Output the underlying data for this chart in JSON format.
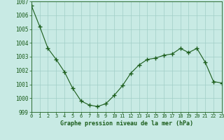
{
  "x": [
    0,
    1,
    2,
    3,
    4,
    5,
    6,
    7,
    8,
    9,
    10,
    11,
    12,
    13,
    14,
    15,
    16,
    17,
    18,
    19,
    20,
    21,
    22,
    23
  ],
  "y": [
    1006.7,
    1005.2,
    1003.6,
    1002.8,
    1001.9,
    1000.7,
    999.8,
    999.5,
    999.4,
    999.6,
    1000.2,
    1000.9,
    1001.8,
    1002.4,
    1002.8,
    1002.9,
    1003.1,
    1003.2,
    1003.6,
    1003.3,
    1003.6,
    1002.6,
    1001.2,
    1001.1
  ],
  "line_color": "#1a5c1a",
  "marker": "+",
  "marker_color": "#1a5c1a",
  "bg_color": "#c8eae4",
  "grid_color": "#a0cec6",
  "xlabel": "Graphe pression niveau de la mer (hPa)",
  "xlabel_color": "#1a5c1a",
  "tick_color": "#1a5c1a",
  "ylim": [
    999,
    1007
  ],
  "yticks": [
    999,
    1000,
    1001,
    1002,
    1003,
    1004,
    1005,
    1006,
    1007
  ],
  "xticks": [
    0,
    1,
    2,
    3,
    4,
    5,
    6,
    7,
    8,
    9,
    10,
    11,
    12,
    13,
    14,
    15,
    16,
    17,
    18,
    19,
    20,
    21,
    22,
    23
  ],
  "figsize": [
    3.2,
    2.0
  ],
  "dpi": 100
}
